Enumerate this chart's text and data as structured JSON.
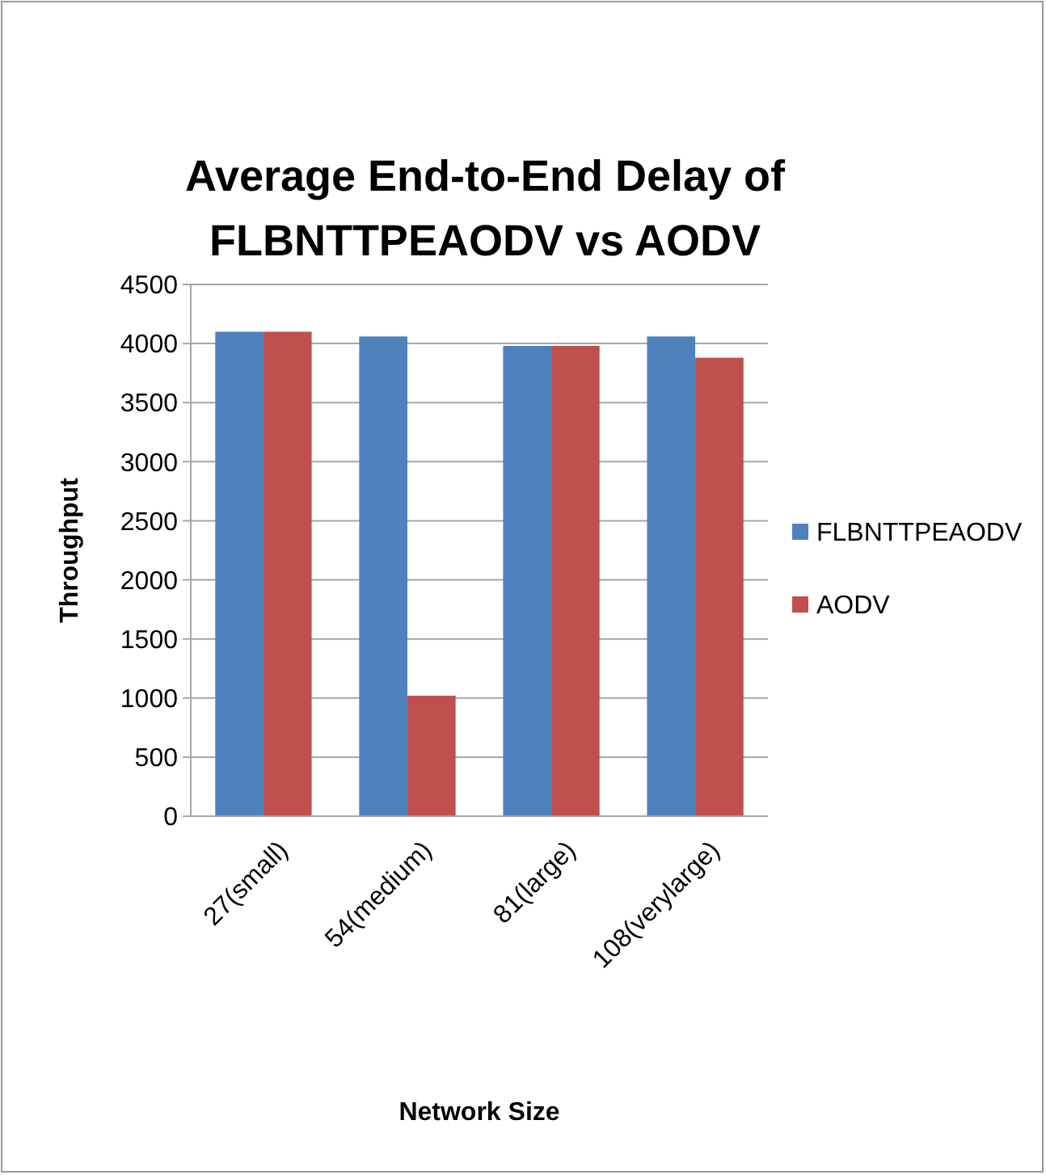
{
  "chart_data": {
    "type": "bar",
    "title": "Average End-to-End Delay of FLBNTTPEAODV vs AODV",
    "xlabel": "Network Size",
    "ylabel": "Throughput",
    "categories": [
      "27(small)",
      "54(medium)",
      "81(large)",
      "108(verylarge)"
    ],
    "series": [
      {
        "name": "FLBNTTPEAODV",
        "color": "#4f81bd",
        "values": [
          4100,
          4060,
          3980,
          4060
        ]
      },
      {
        "name": "AODV",
        "color": "#c0504d",
        "values": [
          4100,
          1020,
          3980,
          3880
        ]
      }
    ],
    "ylim": [
      0,
      4500
    ],
    "yticks": [
      0,
      500,
      1000,
      1500,
      2000,
      2500,
      3000,
      3500,
      4000,
      4500
    ],
    "grid": "y",
    "legend": "right"
  }
}
